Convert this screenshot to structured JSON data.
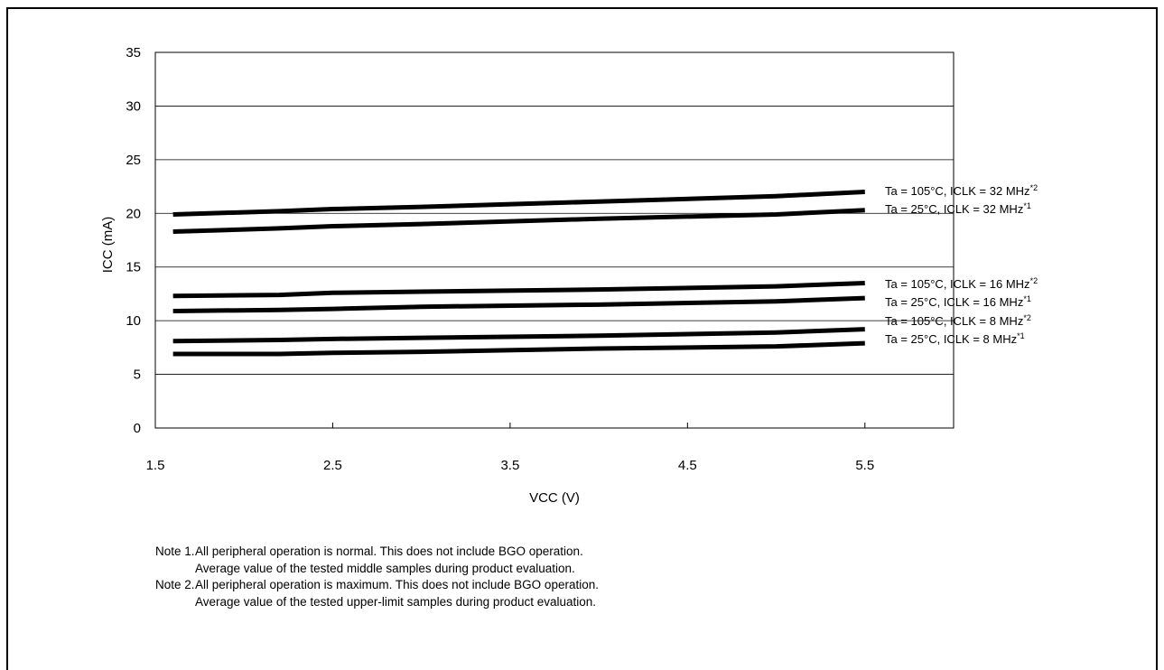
{
  "chart_data": {
    "type": "line",
    "xlabel": "VCC (V)",
    "ylabel": "ICC (mA)",
    "xlim": [
      1.5,
      6.0
    ],
    "ylim": [
      0,
      35
    ],
    "x_ticks": [
      "1.5",
      "2.5",
      "3.5",
      "4.5",
      "5.5"
    ],
    "y_ticks": [
      "0",
      "5",
      "10",
      "15",
      "20",
      "25",
      "30",
      "35"
    ],
    "grid": "horizontal",
    "legend": "right, labels next to line ends",
    "series": [
      {
        "name": "Ta = 105°C, ICLK = 32 MHz",
        "note_ref": "*2",
        "x": [
          1.6,
          2.2,
          2.5,
          3.0,
          4.0,
          5.0,
          5.5
        ],
        "y": [
          19.9,
          20.2,
          20.4,
          20.6,
          21.1,
          21.6,
          22.0
        ]
      },
      {
        "name": "Ta = 25°C, ICLK = 32 MHz",
        "note_ref": "*1",
        "x": [
          1.6,
          2.2,
          2.5,
          3.0,
          4.0,
          5.0,
          5.5
        ],
        "y": [
          18.3,
          18.6,
          18.8,
          19.0,
          19.5,
          19.9,
          20.3
        ]
      },
      {
        "name": "Ta = 105°C, ICLK = 16 MHz",
        "note_ref": "*2",
        "x": [
          1.6,
          2.2,
          2.5,
          3.0,
          4.0,
          5.0,
          5.5
        ],
        "y": [
          12.3,
          12.4,
          12.6,
          12.7,
          12.9,
          13.2,
          13.5
        ]
      },
      {
        "name": "Ta = 25°C, ICLK = 16 MHz",
        "note_ref": "*1",
        "x": [
          1.6,
          2.2,
          2.5,
          3.0,
          4.0,
          5.0,
          5.5
        ],
        "y": [
          10.9,
          11.0,
          11.1,
          11.3,
          11.5,
          11.8,
          12.1
        ]
      },
      {
        "name": "Ta = 105°C, ICLK = 8 MHz",
        "note_ref": "*2",
        "x": [
          1.6,
          2.2,
          2.5,
          3.0,
          4.0,
          5.0,
          5.5
        ],
        "y": [
          8.1,
          8.2,
          8.3,
          8.4,
          8.6,
          8.9,
          9.2
        ]
      },
      {
        "name": "Ta = 25°C, ICLK = 8 MHz",
        "note_ref": "*1",
        "x": [
          1.6,
          2.2,
          2.5,
          3.0,
          4.0,
          5.0,
          5.5
        ],
        "y": [
          6.9,
          6.9,
          7.0,
          7.1,
          7.4,
          7.6,
          7.9
        ]
      }
    ]
  },
  "notes": [
    {
      "tag": "Note 1.",
      "lines": [
        "All peripheral operation is normal. This does not include BGO operation.",
        "Average value of the tested middle samples during product evaluation."
      ]
    },
    {
      "tag": "Note 2.",
      "lines": [
        "All peripheral operation is maximum. This does not include BGO operation.",
        "Average value of the tested upper-limit samples during product evaluation."
      ]
    }
  ]
}
